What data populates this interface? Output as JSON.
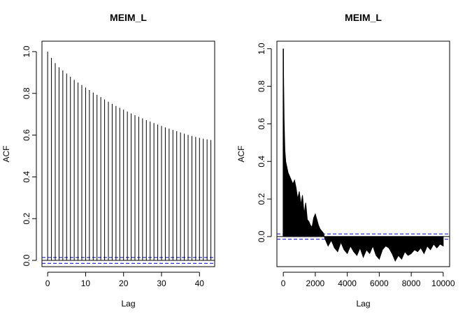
{
  "chart_data": [
    {
      "type": "acf",
      "title": "MEIM_L",
      "xlabel": "Lag",
      "ylabel": "ACF",
      "xlim": [
        -1.5,
        44
      ],
      "ylim": [
        -0.03,
        1.05
      ],
      "x_ticks": [
        0,
        10,
        20,
        30,
        40
      ],
      "y_ticks": [
        0.0,
        0.2,
        0.4,
        0.6,
        0.8,
        1.0
      ],
      "y_tick_labels": [
        "0.0",
        "0.2",
        "0.4",
        "0.6",
        "0.8",
        "1.0"
      ],
      "confidence_band": [
        -0.014,
        0.014
      ],
      "confidence_color": "#0000cc",
      "lags": [
        0,
        1,
        2,
        3,
        4,
        5,
        6,
        7,
        8,
        9,
        10,
        11,
        12,
        13,
        14,
        15,
        16,
        17,
        18,
        19,
        20,
        21,
        22,
        23,
        24,
        25,
        26,
        27,
        28,
        29,
        30,
        31,
        32,
        33,
        34,
        35,
        36,
        37,
        38,
        39,
        40,
        41,
        42,
        43
      ],
      "acf": [
        1.0,
        0.97,
        0.945,
        0.925,
        0.91,
        0.895,
        0.88,
        0.865,
        0.852,
        0.84,
        0.828,
        0.816,
        0.804,
        0.793,
        0.782,
        0.771,
        0.76,
        0.75,
        0.74,
        0.731,
        0.722,
        0.713,
        0.704,
        0.696,
        0.688,
        0.68,
        0.672,
        0.665,
        0.658,
        0.651,
        0.644,
        0.637,
        0.631,
        0.625,
        0.619,
        0.613,
        0.607,
        0.601,
        0.596,
        0.591,
        0.587,
        0.583,
        0.58,
        0.577
      ]
    },
    {
      "type": "acf",
      "title": "MEIM_L",
      "xlabel": "Lag",
      "ylabel": "ACF",
      "xlim": [
        -400,
        10400
      ],
      "ylim": [
        -0.16,
        1.04
      ],
      "x_ticks": [
        0,
        2000,
        4000,
        6000,
        8000,
        10000
      ],
      "y_ticks": [
        0.0,
        0.2,
        0.4,
        0.6,
        0.8,
        1.0
      ],
      "y_tick_labels": [
        "0.0",
        "0.2",
        "0.4",
        "0.6",
        "0.8",
        "1.0"
      ],
      "confidence_band": [
        -0.014,
        0.014
      ],
      "confidence_color": "#0000cc",
      "envelope_lags": [
        0,
        25,
        50,
        75,
        100,
        150,
        200,
        300,
        400,
        500,
        600,
        700,
        800,
        900,
        1000,
        1100,
        1200,
        1300,
        1400,
        1500,
        1600,
        1700,
        1800,
        1900,
        2000,
        2100,
        2200,
        2300,
        2400,
        2500,
        2600,
        2700,
        2800,
        3000,
        3200,
        3400,
        3600,
        3800,
        4000,
        4200,
        4400,
        4600,
        4800,
        5000,
        5200,
        5400,
        5600,
        5800,
        6000,
        6200,
        6400,
        6600,
        6800,
        7000,
        7200,
        7400,
        7600,
        7800,
        8000,
        8200,
        8400,
        8600,
        8800,
        9000,
        9200,
        9400,
        9600,
        9800,
        10000
      ],
      "envelope_acf": [
        1.0,
        0.8,
        0.62,
        0.53,
        0.46,
        0.4,
        0.38,
        0.34,
        0.32,
        0.3,
        0.28,
        0.3,
        0.26,
        0.2,
        0.24,
        0.17,
        0.22,
        0.12,
        0.18,
        0.09,
        0.08,
        0.06,
        0.05,
        0.1,
        0.12,
        0.09,
        0.06,
        0.04,
        0.03,
        0.02,
        -0.01,
        -0.03,
        -0.05,
        -0.02,
        -0.06,
        -0.08,
        -0.03,
        -0.07,
        -0.09,
        -0.05,
        -0.08,
        -0.1,
        -0.06,
        -0.11,
        -0.07,
        -0.09,
        -0.05,
        -0.1,
        -0.12,
        -0.07,
        -0.05,
        -0.06,
        -0.09,
        -0.13,
        -0.1,
        -0.12,
        -0.08,
        -0.1,
        -0.09,
        -0.07,
        -0.08,
        -0.06,
        -0.09,
        -0.05,
        -0.07,
        -0.04,
        -0.06,
        -0.04,
        -0.05
      ]
    }
  ]
}
